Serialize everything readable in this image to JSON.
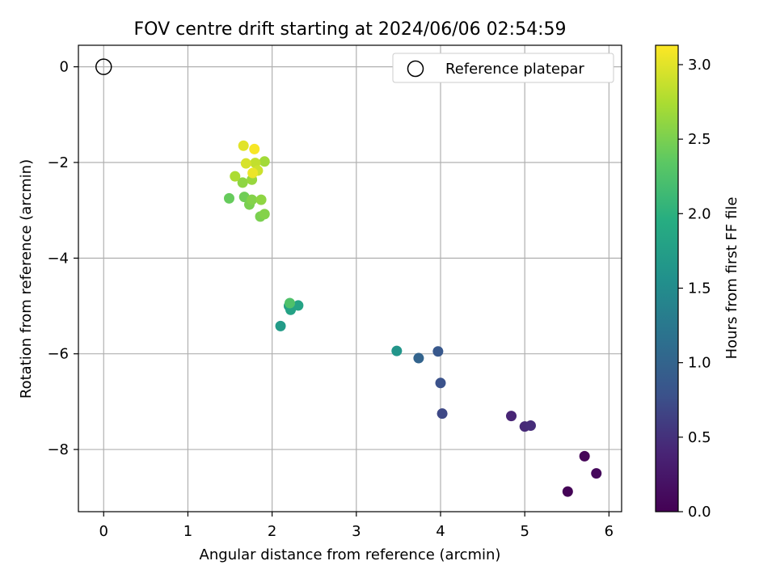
{
  "chart_data": {
    "type": "scatter",
    "title": "FOV centre drift starting at 2024/06/06 02:54:59",
    "xlabel": "Angular distance from reference (arcmin)",
    "ylabel": "Rotation from reference (arcmin)",
    "xlim": [
      -0.3,
      6.15
    ],
    "ylim": [
      -9.3,
      0.45
    ],
    "xticks": [
      0,
      1,
      2,
      3,
      4,
      5,
      6
    ],
    "xtick_labels": [
      "0",
      "1",
      "2",
      "3",
      "4",
      "5",
      "6"
    ],
    "yticks": [
      0,
      -2,
      -4,
      -6,
      -8
    ],
    "ytick_labels": [
      "0",
      "−2",
      "−4",
      "−6",
      "−8"
    ],
    "grid": true,
    "colormap": "viridis",
    "colorbar": {
      "label": "Hours from first FF file",
      "range": [
        0.0,
        3.13
      ],
      "ticks": [
        0.0,
        0.5,
        1.0,
        1.5,
        2.0,
        2.5,
        3.0
      ],
      "tick_labels": [
        "0.0",
        "0.5",
        "1.0",
        "1.5",
        "2.0",
        "2.5",
        "3.0"
      ]
    },
    "legend": {
      "position": "top-right",
      "entries": [
        {
          "label": "Reference platepar",
          "marker": "open-circle"
        }
      ]
    },
    "reference_point": {
      "x": 0,
      "y": 0
    },
    "points": [
      {
        "x": 5.51,
        "y": -8.88,
        "hours": 0.02
      },
      {
        "x": 5.71,
        "y": -8.14,
        "hours": 0.05
      },
      {
        "x": 5.85,
        "y": -8.5,
        "hours": 0.08
      },
      {
        "x": 4.84,
        "y": -7.3,
        "hours": 0.4
      },
      {
        "x": 5.0,
        "y": -7.52,
        "hours": 0.43
      },
      {
        "x": 5.07,
        "y": -7.5,
        "hours": 0.46
      },
      {
        "x": 4.02,
        "y": -7.25,
        "hours": 0.7
      },
      {
        "x": 4.0,
        "y": -6.61,
        "hours": 0.78
      },
      {
        "x": 3.97,
        "y": -5.95,
        "hours": 0.85
      },
      {
        "x": 3.74,
        "y": -6.09,
        "hours": 1.0
      },
      {
        "x": 3.48,
        "y": -5.94,
        "hours": 1.62
      },
      {
        "x": 2.1,
        "y": -5.42,
        "hours": 1.7
      },
      {
        "x": 2.2,
        "y": -5.0,
        "hours": 1.75
      },
      {
        "x": 2.22,
        "y": -5.08,
        "hours": 1.8
      },
      {
        "x": 2.31,
        "y": -4.99,
        "hours": 1.82
      },
      {
        "x": 2.21,
        "y": -4.94,
        "hours": 2.25
      },
      {
        "x": 1.49,
        "y": -2.75,
        "hours": 2.4
      },
      {
        "x": 1.67,
        "y": -2.72,
        "hours": 2.45
      },
      {
        "x": 1.73,
        "y": -2.88,
        "hours": 2.5
      },
      {
        "x": 1.76,
        "y": -2.78,
        "hours": 2.55
      },
      {
        "x": 1.86,
        "y": -3.13,
        "hours": 2.5
      },
      {
        "x": 1.91,
        "y": -3.08,
        "hours": 2.55
      },
      {
        "x": 1.87,
        "y": -2.78,
        "hours": 2.6
      },
      {
        "x": 1.65,
        "y": -2.42,
        "hours": 2.6
      },
      {
        "x": 1.76,
        "y": -2.36,
        "hours": 2.65
      },
      {
        "x": 1.56,
        "y": -2.29,
        "hours": 2.75
      },
      {
        "x": 1.91,
        "y": -1.98,
        "hours": 2.7
      },
      {
        "x": 1.8,
        "y": -2.01,
        "hours": 2.85
      },
      {
        "x": 1.83,
        "y": -2.17,
        "hours": 2.9
      },
      {
        "x": 1.69,
        "y": -2.02,
        "hours": 2.95
      },
      {
        "x": 1.77,
        "y": -2.22,
        "hours": 3.05
      },
      {
        "x": 1.66,
        "y": -1.65,
        "hours": 3.0
      },
      {
        "x": 1.79,
        "y": -1.72,
        "hours": 3.1
      }
    ]
  }
}
